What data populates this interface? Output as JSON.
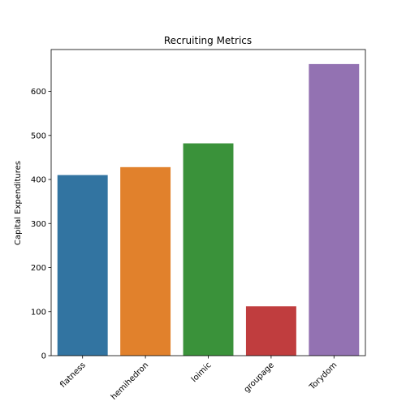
{
  "chart_data": {
    "type": "bar",
    "title": "Recruiting Metrics",
    "xlabel": "",
    "ylabel": "Capital Expenditures",
    "categories": [
      "flatness",
      "hemihedron",
      "loimic",
      "groupage",
      "Torydom"
    ],
    "values": [
      410,
      428,
      482,
      112,
      662
    ],
    "colors": [
      "#3274a1",
      "#e1812c",
      "#3a923a",
      "#c03d3e",
      "#9372b2"
    ],
    "ylim": [
      0,
      695
    ],
    "yticks": [
      0,
      100,
      200,
      300,
      400,
      500,
      600
    ],
    "ytick_labels": [
      "0",
      "100",
      "200",
      "300",
      "400",
      "500",
      "600"
    ],
    "grid": false,
    "legend": "none"
  }
}
